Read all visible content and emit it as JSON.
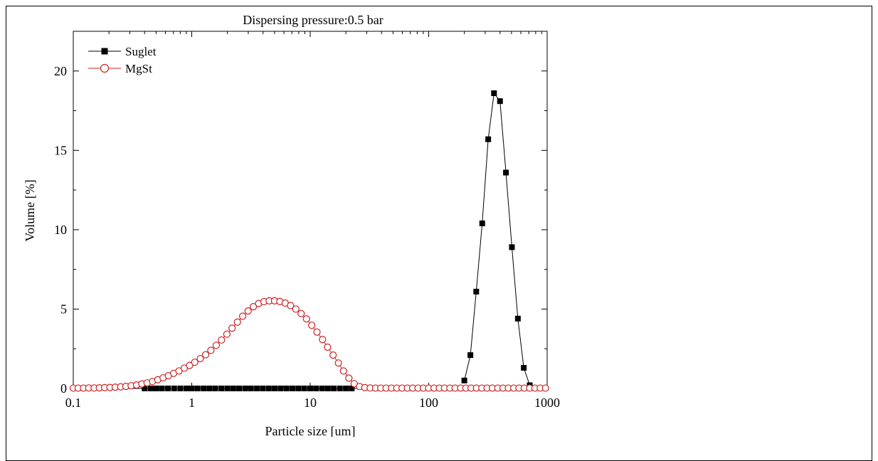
{
  "chart_data": {
    "type": "scatter",
    "title": "Dispersing pressure:0.5 bar",
    "xlabel": "Particle size [um]",
    "ylabel": "Volume [%]",
    "x_scale": "log",
    "xlim": [
      0.1,
      1000
    ],
    "ylim": [
      0,
      22.5
    ],
    "x_ticks": [
      "0.1",
      "1",
      "10",
      "100",
      "1000"
    ],
    "y_ticks": [
      "0",
      "5",
      "10",
      "15",
      "20"
    ],
    "legend_position": "top-left",
    "grid": false,
    "series": [
      {
        "name": "Suglet",
        "color": "#000000",
        "marker": "filled-square",
        "line": true,
        "points": [
          [
            0.4,
            0
          ],
          [
            0.45,
            0
          ],
          [
            0.5,
            0
          ],
          [
            0.56,
            0
          ],
          [
            0.63,
            0
          ],
          [
            0.71,
            0
          ],
          [
            0.8,
            0
          ],
          [
            0.9,
            0
          ],
          [
            1.0,
            0
          ],
          [
            1.12,
            0
          ],
          [
            1.26,
            0
          ],
          [
            1.41,
            0
          ],
          [
            1.58,
            0
          ],
          [
            1.78,
            0
          ],
          [
            2.0,
            0
          ],
          [
            2.24,
            0
          ],
          [
            2.51,
            0
          ],
          [
            2.82,
            0
          ],
          [
            3.16,
            0
          ],
          [
            3.55,
            0
          ],
          [
            3.98,
            0
          ],
          [
            4.47,
            0
          ],
          [
            5.01,
            0
          ],
          [
            5.62,
            0
          ],
          [
            6.31,
            0
          ],
          [
            7.08,
            0
          ],
          [
            7.94,
            0
          ],
          [
            8.91,
            0
          ],
          [
            10.0,
            0
          ],
          [
            11.2,
            0
          ],
          [
            12.6,
            0
          ],
          [
            14.1,
            0
          ],
          [
            15.8,
            0
          ],
          [
            17.8,
            0
          ],
          [
            20.0,
            0
          ],
          [
            22.4,
            0
          ],
          [
            200,
            0.5
          ],
          [
            225,
            2.1
          ],
          [
            252,
            6.1
          ],
          [
            283,
            10.4
          ],
          [
            318,
            15.7
          ],
          [
            356,
            18.6
          ],
          [
            400,
            18.1
          ],
          [
            449,
            13.6
          ],
          [
            504,
            8.9
          ],
          [
            566,
            4.4
          ],
          [
            635,
            1.3
          ],
          [
            713,
            0.2
          ]
        ]
      },
      {
        "name": "MgSt",
        "color": "#cc2222",
        "marker": "open-circle",
        "line": true,
        "points": [
          [
            0.1,
            0.02
          ],
          [
            0.11,
            0.02
          ],
          [
            0.122,
            0.02
          ],
          [
            0.135,
            0.03
          ],
          [
            0.15,
            0.03
          ],
          [
            0.166,
            0.04
          ],
          [
            0.184,
            0.05
          ],
          [
            0.204,
            0.06
          ],
          [
            0.226,
            0.08
          ],
          [
            0.251,
            0.1
          ],
          [
            0.278,
            0.13
          ],
          [
            0.308,
            0.17
          ],
          [
            0.342,
            0.22
          ],
          [
            0.379,
            0.28
          ],
          [
            0.42,
            0.35
          ],
          [
            0.466,
            0.44
          ],
          [
            0.517,
            0.55
          ],
          [
            0.573,
            0.67
          ],
          [
            0.635,
            0.8
          ],
          [
            0.704,
            0.95
          ],
          [
            0.78,
            1.1
          ],
          [
            0.865,
            1.28
          ],
          [
            0.959,
            1.45
          ],
          [
            1.06,
            1.65
          ],
          [
            1.18,
            1.88
          ],
          [
            1.31,
            2.12
          ],
          [
            1.45,
            2.4
          ],
          [
            1.61,
            2.72
          ],
          [
            1.78,
            3.05
          ],
          [
            1.98,
            3.42
          ],
          [
            2.19,
            3.8
          ],
          [
            2.43,
            4.18
          ],
          [
            2.69,
            4.55
          ],
          [
            2.99,
            4.88
          ],
          [
            3.31,
            5.15
          ],
          [
            3.67,
            5.35
          ],
          [
            4.07,
            5.47
          ],
          [
            4.51,
            5.52
          ],
          [
            5.0,
            5.52
          ],
          [
            5.55,
            5.48
          ],
          [
            6.15,
            5.38
          ],
          [
            6.82,
            5.22
          ],
          [
            7.56,
            5.0
          ],
          [
            8.38,
            4.72
          ],
          [
            9.3,
            4.38
          ],
          [
            10.3,
            3.98
          ],
          [
            11.4,
            3.55
          ],
          [
            12.7,
            3.08
          ],
          [
            14.0,
            2.6
          ],
          [
            15.6,
            2.1
          ],
          [
            17.3,
            1.6
          ],
          [
            19.1,
            1.1
          ],
          [
            21.2,
            0.65
          ],
          [
            23.5,
            0.3
          ],
          [
            26.1,
            0.12
          ],
          [
            28.9,
            0.05
          ],
          [
            32.1,
            0.03
          ],
          [
            35.6,
            0.02
          ],
          [
            39.4,
            0.02
          ],
          [
            43.7,
            0.02
          ],
          [
            48.5,
            0.02
          ],
          [
            53.8,
            0.02
          ],
          [
            59.6,
            0.02
          ],
          [
            66.1,
            0.02
          ],
          [
            73.3,
            0.02
          ],
          [
            81.3,
            0.02
          ],
          [
            90.1,
            0.02
          ],
          [
            99.9,
            0.02
          ],
          [
            111,
            0.02
          ],
          [
            123,
            0.02
          ],
          [
            136,
            0.02
          ],
          [
            151,
            0.02
          ],
          [
            167,
            0.02
          ],
          [
            186,
            0.02
          ],
          [
            206,
            0.02
          ],
          [
            228,
            0.02
          ],
          [
            253,
            0.02
          ],
          [
            281,
            0.02
          ],
          [
            311,
            0.02
          ],
          [
            345,
            0.02
          ],
          [
            383,
            0.02
          ],
          [
            424,
            0.02
          ],
          [
            470,
            0.02
          ],
          [
            522,
            0.02
          ],
          [
            578,
            0.02
          ],
          [
            641,
            0.02
          ],
          [
            711,
            0.02
          ],
          [
            789,
            0.02
          ],
          [
            874,
            0.02
          ],
          [
            969,
            0.02
          ]
        ]
      }
    ]
  }
}
